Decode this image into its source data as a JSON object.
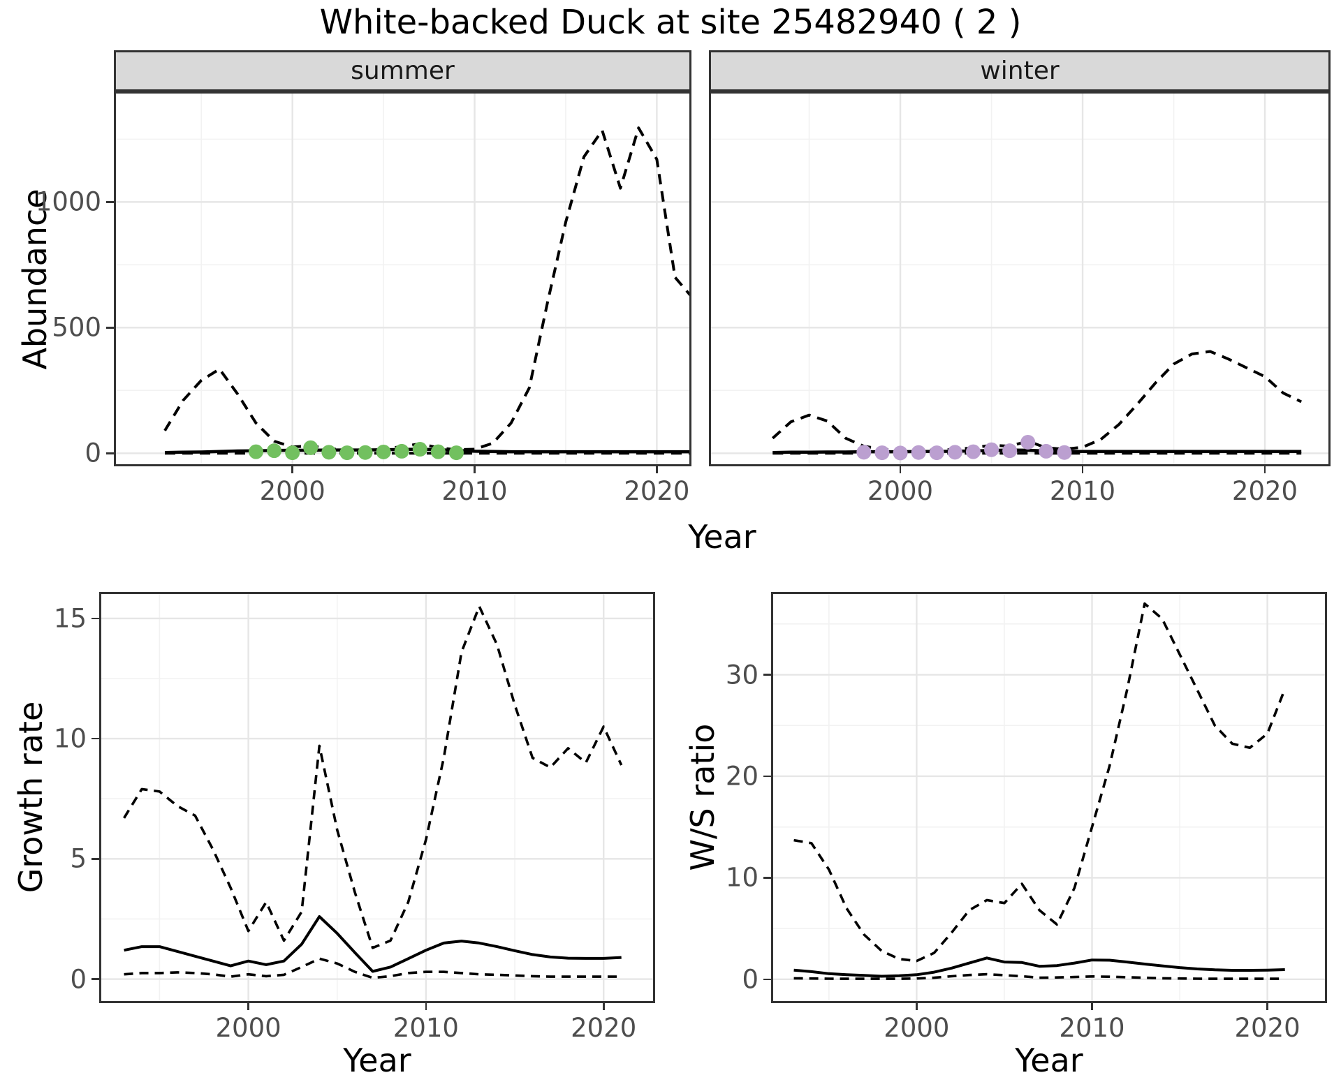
{
  "title": "White-backed Duck at site 25482940 ( 2 )",
  "facets": {
    "summer": "summer",
    "winter": "winter"
  },
  "axis_titles": {
    "abundance": "Abundance",
    "growth_rate": "Growth rate",
    "ws_ratio": "W/S ratio",
    "year": "Year"
  },
  "colors": {
    "line": "#000000",
    "summer_points": "#72C05F",
    "winter_points": "#BB9FD0",
    "strip_bg": "#D9D9D9",
    "panel_border": "#333333",
    "grid_major": "#E6E6E6",
    "grid_minor": "#F2F2F2",
    "tick_text": "#4D4D4D"
  },
  "chart_data": [
    {
      "id": "abundance_summer",
      "type": "line",
      "facet": "summer",
      "xlabel": "Year",
      "ylabel": "Abundance",
      "x": [
        1993,
        1994,
        1995,
        1996,
        1997,
        1998,
        1999,
        2000,
        2001,
        2002,
        2003,
        2004,
        2005,
        2006,
        2007,
        2008,
        2009,
        2010,
        2011,
        2012,
        2013,
        2014,
        2015,
        2016,
        2017,
        2018,
        2019,
        2020,
        2021,
        2022
      ],
      "series": [
        {
          "name": "upper_95ci",
          "style": "dashed",
          "values": [
            90,
            210,
            290,
            335,
            235,
            120,
            48,
            25,
            30,
            18,
            14,
            14,
            18,
            26,
            38,
            22,
            14,
            16,
            40,
            120,
            260,
            600,
            920,
            1180,
            1285,
            1055,
            1295,
            1170,
            700,
            615
          ]
        },
        {
          "name": "mean",
          "style": "solid",
          "values": [
            3,
            4,
            5,
            7,
            9,
            10,
            11,
            12,
            12,
            13,
            13,
            13,
            14,
            15,
            16,
            14,
            11,
            8,
            7,
            6,
            6,
            6,
            6,
            6,
            6,
            6,
            6,
            6,
            6,
            6
          ]
        },
        {
          "name": "lower_95ci",
          "style": "dashed",
          "values": [
            0,
            0,
            0,
            0,
            0,
            0,
            0,
            0,
            0,
            0,
            0,
            0,
            0,
            0,
            0,
            0,
            0,
            0,
            0,
            0,
            0,
            0,
            0,
            0,
            0,
            0,
            0,
            0,
            0,
            0
          ]
        }
      ],
      "points": {
        "name": "observed_counts_summer",
        "color_key": "summer_points",
        "x": [
          1998,
          1999,
          2000,
          2001,
          2002,
          2003,
          2004,
          2005,
          2006,
          2007,
          2008,
          2009
        ],
        "y": [
          6,
          10,
          2,
          22,
          4,
          2,
          3,
          5,
          8,
          16,
          6,
          2
        ]
      },
      "xlim": [
        1990.2,
        2021.9
      ],
      "ylim": [
        -52,
        1440
      ],
      "xticks": [
        2000,
        2010,
        2020
      ],
      "yticks": [
        0,
        500,
        1000
      ],
      "xminor": [
        1995,
        2005,
        2015
      ],
      "yminor": [
        250,
        750,
        1250
      ],
      "grid": true,
      "legend": "none"
    },
    {
      "id": "abundance_winter",
      "type": "line",
      "facet": "winter",
      "xlabel": "Year",
      "ylabel": "Abundance",
      "x": [
        1993,
        1994,
        1995,
        1996,
        1997,
        1998,
        1999,
        2000,
        2001,
        2002,
        2003,
        2004,
        2005,
        2006,
        2007,
        2008,
        2009,
        2010,
        2011,
        2012,
        2013,
        2014,
        2015,
        2016,
        2017,
        2018,
        2019,
        2020,
        2021,
        2022
      ],
      "series": [
        {
          "name": "upper_95ci",
          "style": "dashed",
          "values": [
            60,
            125,
            152,
            128,
            60,
            28,
            16,
            12,
            12,
            13,
            15,
            22,
            32,
            28,
            48,
            22,
            16,
            24,
            55,
            115,
            195,
            280,
            355,
            395,
            405,
            375,
            340,
            305,
            240,
            205
          ]
        },
        {
          "name": "mean",
          "style": "solid",
          "values": [
            3,
            4,
            4,
            5,
            5,
            6,
            6,
            6,
            7,
            7,
            8,
            9,
            11,
            13,
            12,
            9,
            7,
            7,
            7,
            7,
            7,
            7,
            7,
            7,
            7,
            7,
            7,
            7,
            7,
            7
          ]
        },
        {
          "name": "lower_95ci",
          "style": "dashed",
          "values": [
            0,
            0,
            0,
            0,
            0,
            0,
            0,
            0,
            0,
            0,
            0,
            0,
            0,
            0,
            0,
            0,
            0,
            0,
            0,
            0,
            0,
            0,
            0,
            0,
            0,
            0,
            0,
            0,
            0,
            0
          ]
        }
      ],
      "points": {
        "name": "observed_counts_winter",
        "color_key": "winter_points",
        "x": [
          1998,
          1999,
          2000,
          2001,
          2002,
          2003,
          2004,
          2005,
          2006,
          2007,
          2008,
          2009
        ],
        "y": [
          4,
          2,
          1,
          3,
          2,
          4,
          6,
          14,
          10,
          44,
          8,
          3
        ]
      },
      "xlim": [
        1989.5,
        2023.6
      ],
      "ylim": [
        -52,
        1440
      ],
      "xticks": [
        2000,
        2010,
        2020
      ],
      "yticks": [
        0,
        500,
        1000
      ],
      "xminor": [
        1995,
        2005,
        2015
      ],
      "yminor": [
        250,
        750,
        1250
      ],
      "grid": true,
      "legend": "none"
    },
    {
      "id": "growth_rate",
      "type": "line",
      "facet": null,
      "xlabel": "Year",
      "ylabel": "Growth rate",
      "x": [
        1993,
        1994,
        1995,
        1996,
        1997,
        1998,
        1999,
        2000,
        2001,
        2002,
        2003,
        2004,
        2005,
        2006,
        2007,
        2008,
        2009,
        2010,
        2011,
        2012,
        2013,
        2014,
        2015,
        2016,
        2017,
        2018,
        2019,
        2020,
        2021
      ],
      "series": [
        {
          "name": "upper_95ci",
          "style": "dashed",
          "values": [
            6.7,
            7.9,
            7.8,
            7.2,
            6.8,
            5.4,
            3.8,
            2.0,
            3.2,
            1.6,
            2.8,
            9.7,
            6.2,
            3.6,
            1.3,
            1.6,
            3.2,
            5.8,
            9.2,
            13.6,
            15.5,
            13.9,
            11.4,
            9.2,
            8.8,
            9.6,
            9.0,
            10.5,
            8.9
          ]
        },
        {
          "name": "mean",
          "style": "solid",
          "values": [
            1.2,
            1.35,
            1.35,
            1.15,
            0.95,
            0.75,
            0.55,
            0.75,
            0.6,
            0.75,
            1.45,
            2.6,
            1.9,
            1.1,
            0.32,
            0.5,
            0.85,
            1.2,
            1.5,
            1.58,
            1.5,
            1.35,
            1.18,
            1.02,
            0.92,
            0.87,
            0.86,
            0.86,
            0.9
          ]
        },
        {
          "name": "lower_95ci",
          "style": "dashed",
          "values": [
            0.2,
            0.25,
            0.25,
            0.28,
            0.25,
            0.2,
            0.1,
            0.2,
            0.12,
            0.18,
            0.5,
            0.85,
            0.65,
            0.3,
            0.05,
            0.12,
            0.25,
            0.3,
            0.3,
            0.25,
            0.2,
            0.18,
            0.15,
            0.12,
            0.1,
            0.1,
            0.1,
            0.1,
            0.1
          ]
        }
      ],
      "points": null,
      "xlim": [
        1991.6,
        2022.9
      ],
      "ylim": [
        -1.0,
        16.1
      ],
      "xticks": [
        2000,
        2010,
        2020
      ],
      "yticks": [
        0,
        5,
        10,
        15
      ],
      "xminor": [
        1995,
        2005,
        2015
      ],
      "yminor": [
        2.5,
        7.5,
        12.5
      ],
      "grid": true,
      "legend": "none"
    },
    {
      "id": "ws_ratio",
      "type": "line",
      "facet": null,
      "xlabel": "Year",
      "ylabel": "W/S ratio",
      "x": [
        1993,
        1994,
        1995,
        1996,
        1997,
        1998,
        1999,
        2000,
        2001,
        2002,
        2003,
        2004,
        2005,
        2006,
        2007,
        2008,
        2009,
        2010,
        2011,
        2012,
        2013,
        2014,
        2015,
        2016,
        2017,
        2018,
        2019,
        2020,
        2021
      ],
      "series": [
        {
          "name": "upper_95ci",
          "style": "dashed",
          "values": [
            13.7,
            13.4,
            10.8,
            7.0,
            4.4,
            2.8,
            2.0,
            1.8,
            2.6,
            4.6,
            6.8,
            7.8,
            7.5,
            9.4,
            6.8,
            5.4,
            9.0,
            15.0,
            21.0,
            28.5,
            37.0,
            35.5,
            32.0,
            28.5,
            25.0,
            23.2,
            22.8,
            24.2,
            28.6
          ]
        },
        {
          "name": "mean",
          "style": "solid",
          "values": [
            0.9,
            0.75,
            0.55,
            0.45,
            0.38,
            0.3,
            0.35,
            0.45,
            0.7,
            1.1,
            1.6,
            2.1,
            1.7,
            1.65,
            1.28,
            1.35,
            1.6,
            1.9,
            1.88,
            1.7,
            1.5,
            1.32,
            1.15,
            1.02,
            0.93,
            0.88,
            0.88,
            0.9,
            0.95
          ]
        },
        {
          "name": "lower_95ci",
          "style": "dashed",
          "values": [
            0.1,
            0.08,
            0.06,
            0.05,
            0.05,
            0.05,
            0.05,
            0.08,
            0.15,
            0.3,
            0.42,
            0.5,
            0.4,
            0.3,
            0.15,
            0.18,
            0.22,
            0.28,
            0.25,
            0.2,
            0.15,
            0.1,
            0.08,
            0.06,
            0.05,
            0.05,
            0.05,
            0.05,
            0.05
          ]
        }
      ],
      "points": null,
      "xlim": [
        1991.7,
        2023.4
      ],
      "ylim": [
        -2.35,
        38.15
      ],
      "xticks": [
        2000,
        2010,
        2020
      ],
      "yticks": [
        0,
        10,
        20,
        30
      ],
      "xminor": [
        1995,
        2005,
        2015
      ],
      "yminor": [
        5,
        15,
        25,
        35
      ],
      "grid": true,
      "legend": "none"
    }
  ]
}
